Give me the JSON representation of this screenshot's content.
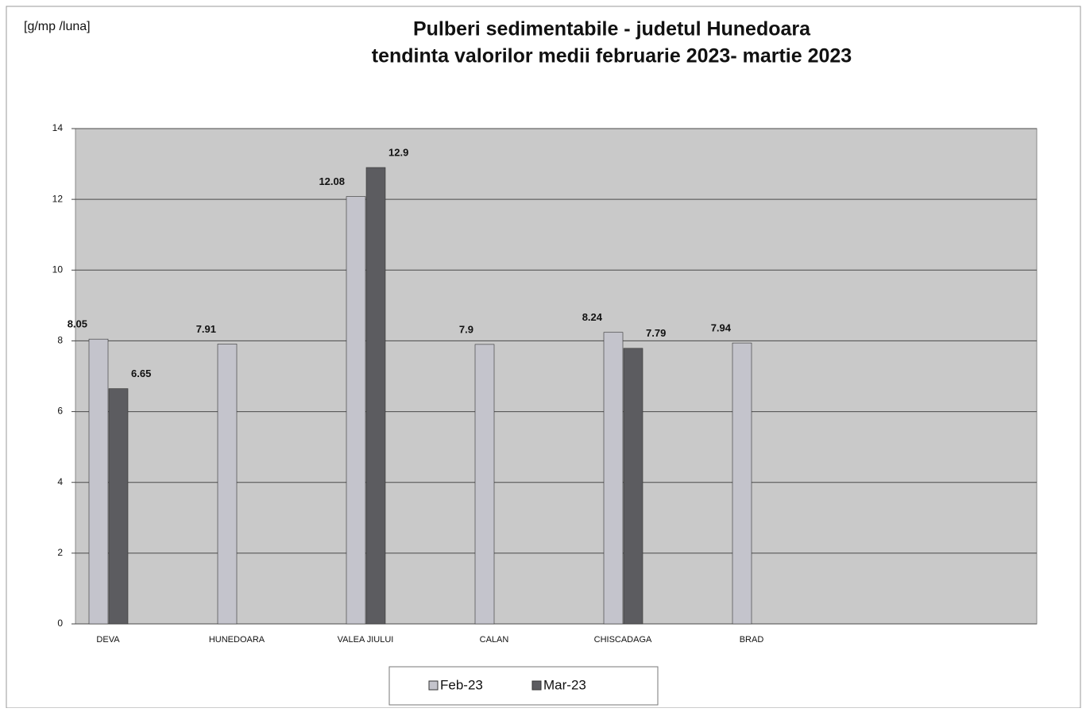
{
  "chart_data": {
    "type": "bar",
    "ylabel": "[g/mp /luna]",
    "title": "Pulberi sedimentabile - judetul Hunedoara",
    "subtitle": "tendinta valorilor medii februarie  2023- martie 2023",
    "categories": [
      "DEVA",
      "HUNEDOARA",
      "VALEA JIULUI",
      "CALAN",
      "CHISCADAGA",
      "BRAD"
    ],
    "series": [
      {
        "name": "Feb-23",
        "color": "#c4c4cc",
        "values": [
          8.05,
          7.91,
          12.08,
          7.9,
          8.24,
          7.94
        ]
      },
      {
        "name": "Mar-23",
        "color": "#5c5c60",
        "values": [
          6.65,
          null,
          12.9,
          null,
          7.79,
          null
        ]
      }
    ],
    "ylim": [
      0,
      14
    ],
    "yticks": [
      0,
      2,
      4,
      6,
      8,
      10,
      12,
      14
    ],
    "grid": true,
    "legend": "bottom"
  }
}
